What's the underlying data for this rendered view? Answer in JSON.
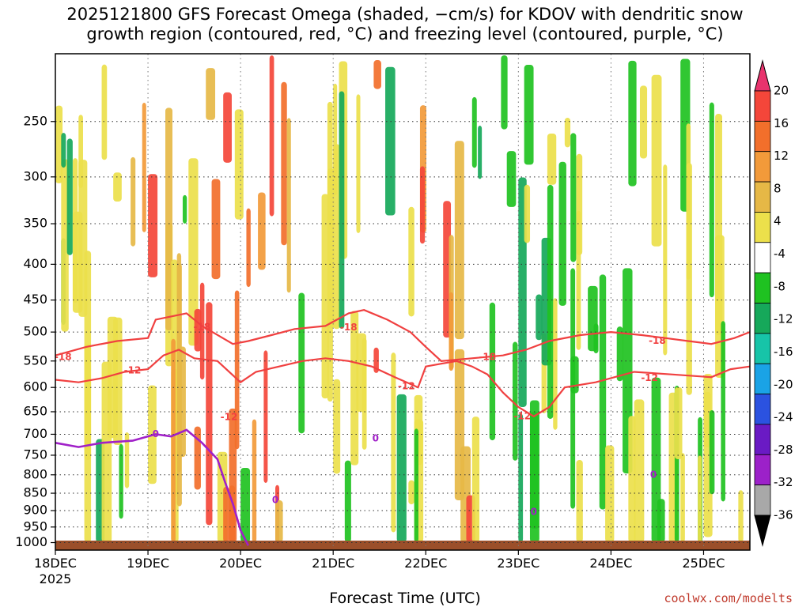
{
  "chart_data": {
    "type": "heatmap",
    "title_line1": "2025121800 GFS Forecast Omega (shaded, −cm/s) for KDOV with dendritic snow",
    "title_line2": "growth region (contoured, red, °C) and freezing level (contoured, purple, °C)",
    "xlabel": "Forecast Time (UTC)",
    "ylabel": "",
    "credit": "coolwx.com/modelts",
    "x_ticks": [
      {
        "label": "18DEC",
        "hour": 0
      },
      {
        "label": "19DEC",
        "hour": 24
      },
      {
        "label": "20DEC",
        "hour": 48
      },
      {
        "label": "21DEC",
        "hour": 72
      },
      {
        "label": "22DEC",
        "hour": 96
      },
      {
        "label": "23DEC",
        "hour": 120
      },
      {
        "label": "24DEC",
        "hour": 144
      },
      {
        "label": "25DEC",
        "hour": 168
      }
    ],
    "x_year_label": "2025",
    "xlim_hours": [
      0,
      180
    ],
    "y_ticks": [
      250,
      300,
      350,
      400,
      450,
      500,
      550,
      600,
      650,
      700,
      750,
      800,
      850,
      900,
      950,
      1000
    ],
    "ylim_hPa": [
      1025,
      200
    ],
    "colorbar": {
      "labels": [
        "20",
        "16",
        "12",
        "8",
        "4",
        "-4",
        "-8",
        "-12",
        "-16",
        "-20",
        "-24",
        "-28",
        "-32",
        "-36"
      ],
      "colors": [
        "#e8336d",
        "#f4463a",
        "#f26f2b",
        "#f29a3a",
        "#e6b846",
        "#ece04b",
        "#ffffff",
        "#1fc221",
        "#16a85a",
        "#17c4a8",
        "#1aa3e6",
        "#2b52e0",
        "#6a1ac4",
        "#9c21c9",
        "#a8a8a8",
        "#000000"
      ]
    },
    "contours": {
      "dgz": {
        "color": "#f04040",
        "levels": [
          "-12",
          "-18"
        ],
        "minus12_path": [
          [
            0,
            585
          ],
          [
            6,
            590
          ],
          [
            12,
            582
          ],
          [
            18,
            570
          ],
          [
            24,
            565
          ],
          [
            28,
            540
          ],
          [
            32,
            530
          ],
          [
            36,
            545
          ],
          [
            42,
            550
          ],
          [
            48,
            590
          ],
          [
            52,
            570
          ],
          [
            58,
            560
          ],
          [
            64,
            550
          ],
          [
            70,
            545
          ],
          [
            76,
            550
          ],
          [
            82,
            560
          ],
          [
            88,
            580
          ],
          [
            94,
            600
          ],
          [
            96,
            560
          ],
          [
            100,
            555
          ],
          [
            104,
            550
          ],
          [
            108,
            560
          ],
          [
            112,
            575
          ],
          [
            116,
            610
          ],
          [
            120,
            640
          ],
          [
            124,
            660
          ],
          [
            128,
            640
          ],
          [
            132,
            600
          ],
          [
            140,
            590
          ],
          [
            150,
            570
          ],
          [
            160,
            575
          ],
          [
            170,
            580
          ],
          [
            175,
            565
          ],
          [
            180,
            560
          ]
        ],
        "minus18_path": [
          [
            0,
            540
          ],
          [
            8,
            525
          ],
          [
            16,
            515
          ],
          [
            24,
            510
          ],
          [
            26,
            480
          ],
          [
            34,
            470
          ],
          [
            38,
            490
          ],
          [
            46,
            520
          ],
          [
            50,
            515
          ],
          [
            56,
            505
          ],
          [
            62,
            495
          ],
          [
            70,
            490
          ],
          [
            76,
            470
          ],
          [
            80,
            465
          ],
          [
            86,
            480
          ],
          [
            92,
            500
          ],
          [
            96,
            525
          ],
          [
            100,
            550
          ],
          [
            108,
            545
          ],
          [
            116,
            540
          ],
          [
            122,
            530
          ],
          [
            128,
            515
          ],
          [
            136,
            505
          ],
          [
            144,
            500
          ],
          [
            152,
            505
          ],
          [
            158,
            510
          ],
          [
            164,
            515
          ],
          [
            170,
            520
          ],
          [
            176,
            510
          ],
          [
            180,
            500
          ]
        ]
      },
      "freezing": {
        "color": "#a020c8",
        "level": "0",
        "path": [
          [
            0,
            720
          ],
          [
            6,
            730
          ],
          [
            12,
            720
          ],
          [
            20,
            715
          ],
          [
            26,
            700
          ],
          [
            30,
            705
          ],
          [
            34,
            690
          ],
          [
            38,
            720
          ],
          [
            42,
            760
          ],
          [
            44,
            820
          ],
          [
            46,
            880
          ],
          [
            48,
            960
          ],
          [
            50,
            1010
          ]
        ]
      }
    },
    "contour_labels": [
      {
        "text": "-18",
        "hour": 2,
        "p": 543,
        "type": "dgz"
      },
      {
        "text": "-12",
        "hour": 20,
        "p": 568,
        "type": "dgz"
      },
      {
        "text": "-18",
        "hour": 38,
        "p": 492,
        "type": "dgz"
      },
      {
        "text": "-18",
        "hour": 76,
        "p": 493,
        "type": "dgz"
      },
      {
        "text": "-12",
        "hour": 45,
        "p": 662,
        "type": "dgz"
      },
      {
        "text": "-12",
        "hour": 91,
        "p": 598,
        "type": "dgz"
      },
      {
        "text": "-18",
        "hour": 112,
        "p": 543,
        "type": "dgz"
      },
      {
        "text": "-12",
        "hour": 121,
        "p": 660,
        "type": "dgz"
      },
      {
        "text": "-18",
        "hour": 156,
        "p": 515,
        "type": "dgz"
      },
      {
        "text": "-12",
        "hour": 154,
        "p": 582,
        "type": "dgz"
      },
      {
        "text": "0",
        "hour": 26,
        "p": 700,
        "type": "freezing"
      },
      {
        "text": "0",
        "hour": 57,
        "p": 870,
        "type": "freezing"
      },
      {
        "text": "0",
        "hour": 83,
        "p": 710,
        "type": "freezing"
      },
      {
        "text": "0",
        "hour": 124,
        "p": 905,
        "type": "freezing"
      },
      {
        "text": "0",
        "hour": 155,
        "p": 800,
        "type": "freezing"
      }
    ]
  }
}
